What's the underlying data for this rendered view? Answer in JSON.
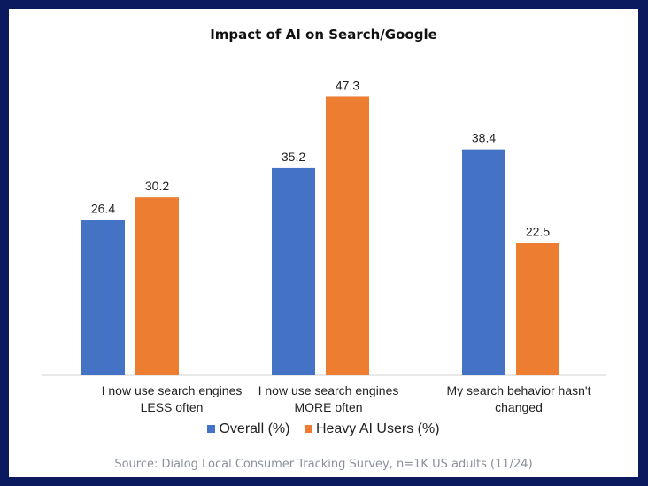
{
  "chart_data": {
    "type": "bar",
    "title": "Impact of AI on Search/Google",
    "categories": [
      "I now use search engines LESS often",
      "I now use search engines MORE often",
      "My search behavior hasn't changed"
    ],
    "category_lines": [
      [
        "I now use search engines",
        "LESS often"
      ],
      [
        "I now use search engines",
        "MORE often"
      ],
      [
        "My search behavior hasn't",
        "changed"
      ]
    ],
    "series": [
      {
        "name": "Overall (%)",
        "color": "#4472c4",
        "values": [
          26.4,
          35.2,
          38.4
        ],
        "labels": [
          "26.4",
          "35.2",
          "38.4"
        ]
      },
      {
        "name": "Heavy AI Users (%)",
        "color": "#ed7d31",
        "values": [
          30.2,
          47.3,
          22.5
        ],
        "labels": [
          "30.2",
          "47.3",
          "22.5"
        ]
      }
    ],
    "ylim": [
      0,
      50
    ],
    "grid": false,
    "legend_position": "bottom",
    "source": "Source: Dialog Local Consumer Tracking Survey, n=1K US adults (11/24)"
  }
}
